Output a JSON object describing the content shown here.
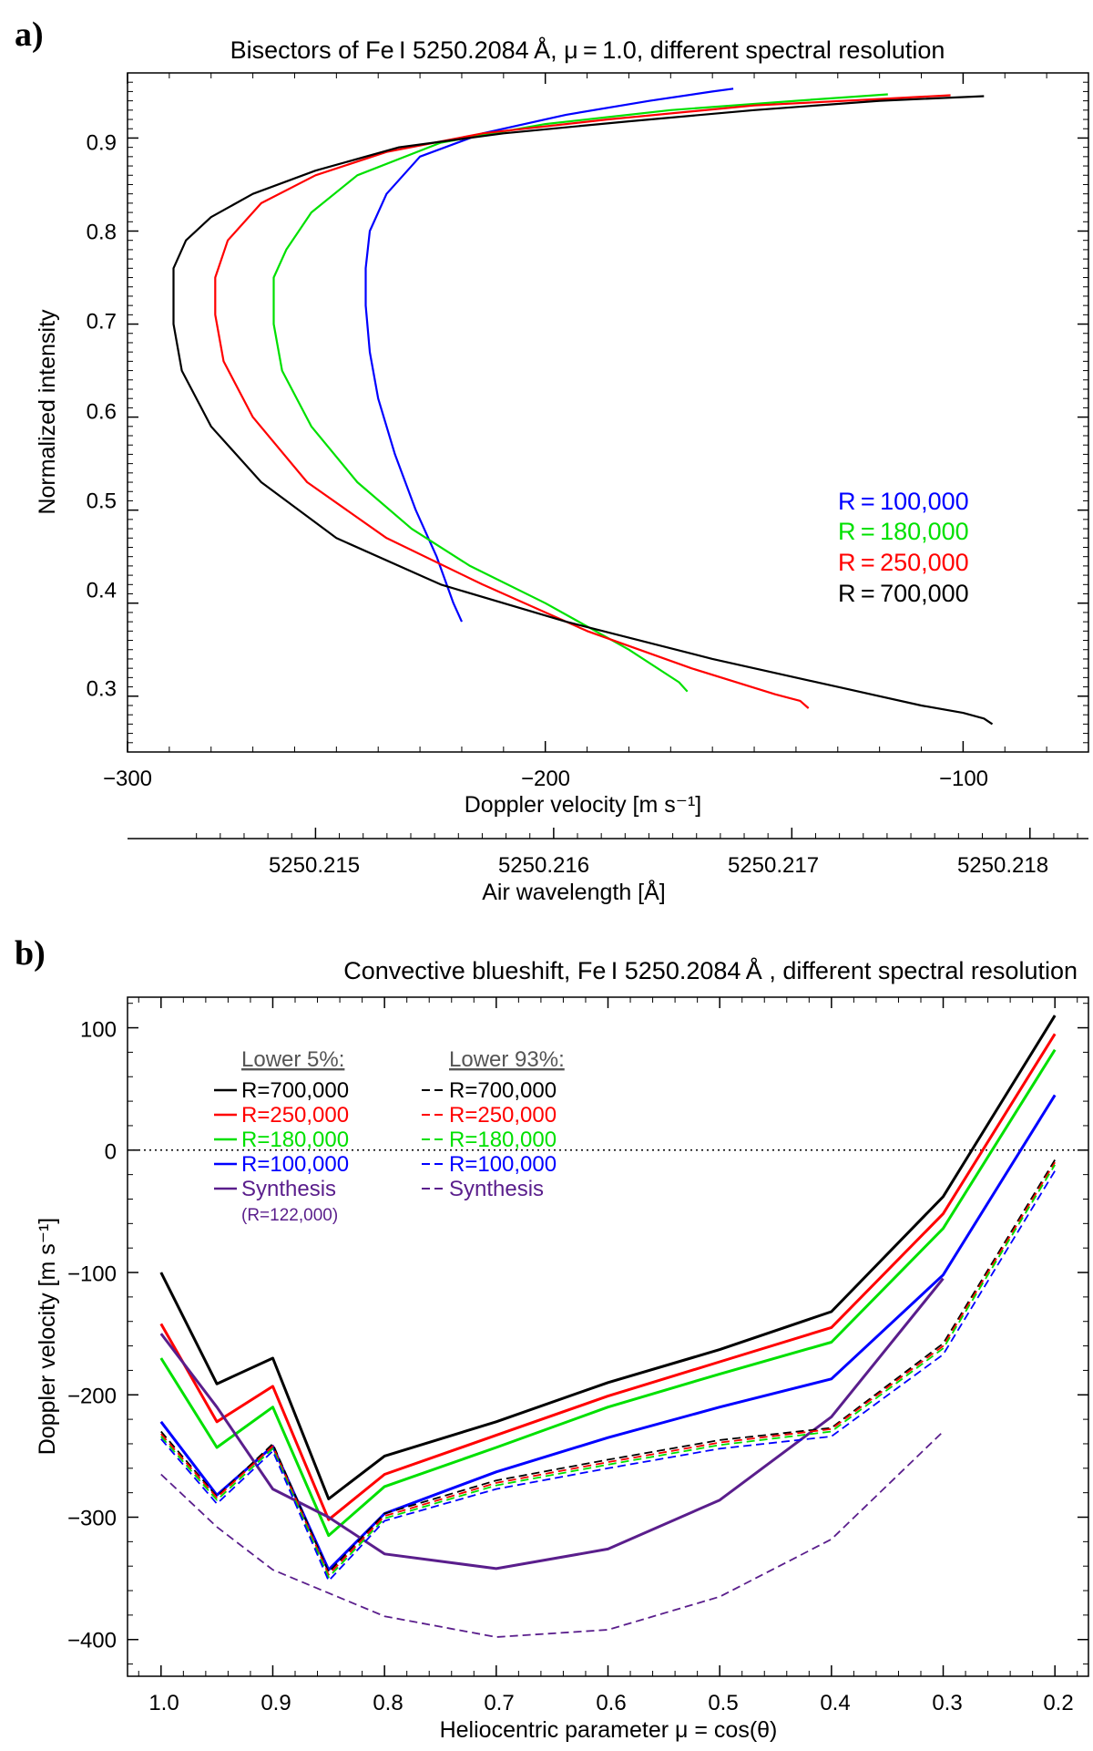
{
  "chart_data": [
    {
      "id": "a",
      "type": "line",
      "panel_label": "a)",
      "title": "Bisectors of Fe I 5250.2084 Å, μ = 1.0, different spectral resolution",
      "xlabel": "Doppler velocity [m s⁻¹]",
      "ylabel": "Normalized intensity",
      "xlim": [
        -300,
        -70
      ],
      "ylim": [
        0.24,
        0.97
      ],
      "x_ticks": [
        -300,
        -200,
        -100
      ],
      "x_tick_labels": [
        "−300",
        "−200",
        "−100"
      ],
      "y_ticks": [
        0.3,
        0.4,
        0.5,
        0.6,
        0.7,
        0.8,
        0.9
      ],
      "y_tick_labels": [
        "0.3",
        "0.4",
        "0.5",
        "0.6",
        "0.7",
        "0.8",
        "0.9"
      ],
      "secondary_x_axis": {
        "label": "Air wavelength [Å]",
        "ticks": [
          5250.215,
          5250.216,
          5250.217,
          5250.218
        ],
        "tick_labels": [
          "5250.215",
          "5250.216",
          "5250.217",
          "5250.218"
        ],
        "tick_velocity": [
          -255,
          -198,
          -141,
          -84
        ]
      },
      "legend": {
        "position": "lower-right",
        "entries": [
          {
            "label": "R = 100,000",
            "color": "#0000ff"
          },
          {
            "label": "R = 180,000",
            "color": "#00e000"
          },
          {
            "label": "R = 250,000",
            "color": "#ff0000"
          },
          {
            "label": "R = 700,000",
            "color": "#000000"
          }
        ]
      },
      "series": [
        {
          "name": "R = 100,000",
          "color": "#0000ff",
          "dash": "solid",
          "x": [
            -220,
            -222,
            -226,
            -231,
            -236,
            -240,
            -242,
            -243,
            -243,
            -242,
            -238,
            -230,
            -215,
            -195,
            -175,
            -160,
            -155
          ],
          "y": [
            0.38,
            0.4,
            0.45,
            0.5,
            0.56,
            0.62,
            0.67,
            0.72,
            0.76,
            0.8,
            0.84,
            0.88,
            0.905,
            0.925,
            0.94,
            0.95,
            0.953
          ]
        },
        {
          "name": "R = 180,000",
          "color": "#00e000",
          "dash": "solid",
          "x": [
            -166,
            -168,
            -180,
            -200,
            -218,
            -232,
            -245,
            -256,
            -263,
            -265,
            -265,
            -262,
            -256,
            -245,
            -225,
            -200,
            -170,
            -140,
            -118
          ],
          "y": [
            0.305,
            0.315,
            0.35,
            0.4,
            0.44,
            0.48,
            0.53,
            0.59,
            0.65,
            0.7,
            0.75,
            0.78,
            0.82,
            0.86,
            0.895,
            0.915,
            0.93,
            0.94,
            0.947
          ]
        },
        {
          "name": "R = 250,000",
          "color": "#ff0000",
          "dash": "solid",
          "x": [
            -137,
            -139,
            -145,
            -165,
            -190,
            -215,
            -238,
            -257,
            -270,
            -277,
            -279,
            -279,
            -276,
            -268,
            -255,
            -238,
            -215,
            -185,
            -150,
            -120,
            -103
          ],
          "y": [
            0.287,
            0.295,
            0.302,
            0.33,
            0.37,
            0.42,
            0.47,
            0.53,
            0.6,
            0.66,
            0.71,
            0.75,
            0.79,
            0.83,
            0.86,
            0.885,
            0.905,
            0.92,
            0.935,
            0.942,
            0.946
          ]
        },
        {
          "name": "R = 700,000",
          "color": "#000000",
          "dash": "solid",
          "x": [
            -93,
            -95,
            -100,
            -110,
            -130,
            -160,
            -195,
            -225,
            -250,
            -268,
            -280,
            -287,
            -289,
            -289,
            -286,
            -280,
            -270,
            -255,
            -235,
            -210,
            -180,
            -150,
            -120,
            -95
          ],
          "y": [
            0.27,
            0.276,
            0.282,
            0.29,
            0.31,
            0.34,
            0.38,
            0.42,
            0.47,
            0.53,
            0.59,
            0.65,
            0.7,
            0.76,
            0.79,
            0.815,
            0.84,
            0.865,
            0.89,
            0.905,
            0.918,
            0.93,
            0.94,
            0.945
          ]
        }
      ]
    },
    {
      "id": "b",
      "type": "line",
      "panel_label": "b)",
      "title": "Convective blueshift, Fe I 5250.2084 Å , different spectral resolution",
      "xlabel": "Heliocentric parameter μ = cos(θ)",
      "ylabel": "Doppler velocity [m s⁻¹]",
      "xlim": [
        1.03,
        0.17
      ],
      "ylim": [
        -430,
        125
      ],
      "x_ticks": [
        1.0,
        0.9,
        0.8,
        0.7,
        0.6,
        0.5,
        0.4,
        0.3,
        0.2
      ],
      "x_tick_labels": [
        "1.0",
        "0.9",
        "0.8",
        "0.7",
        "0.6",
        "0.5",
        "0.4",
        "0.3",
        "0.2"
      ],
      "y_ticks": [
        -400,
        -300,
        -200,
        -100,
        0,
        100
      ],
      "y_tick_labels": [
        "−400",
        "−300",
        "−200",
        "−100",
        "0",
        "100"
      ],
      "zero_line": true,
      "legend": {
        "position": "top-left",
        "columns": [
          {
            "heading": "Lower 5%:",
            "dash": "solid",
            "entries": [
              {
                "label": "R=700,000",
                "color": "#000000"
              },
              {
                "label": "R=250,000",
                "color": "#ff0000"
              },
              {
                "label": "R=180,000",
                "color": "#00e000"
              },
              {
                "label": "R=100,000",
                "color": "#0000ff"
              },
              {
                "label": "Synthesis",
                "color": "#5a1e8c",
                "note": "(R=122,000)"
              }
            ]
          },
          {
            "heading": "Lower 93%:",
            "dash": "dashed",
            "entries": [
              {
                "label": "R=700,000",
                "color": "#000000"
              },
              {
                "label": "R=250,000",
                "color": "#ff0000"
              },
              {
                "label": "R=180,000",
                "color": "#00e000"
              },
              {
                "label": "R=100,000",
                "color": "#0000ff"
              },
              {
                "label": "Synthesis",
                "color": "#5a1e8c"
              }
            ]
          }
        ]
      },
      "x": [
        1.0,
        0.95,
        0.9,
        0.85,
        0.8,
        0.7,
        0.6,
        0.5,
        0.4,
        0.3,
        0.2
      ],
      "series": [
        {
          "name": "Lower 5% R=700,000",
          "color": "#000000",
          "dash": "solid",
          "values": [
            -100,
            -191,
            -170,
            -285,
            -250,
            -222,
            -190,
            -163,
            -132,
            -38,
            110
          ]
        },
        {
          "name": "Lower 5% R=250,000",
          "color": "#ff0000",
          "dash": "solid",
          "values": [
            -142,
            -222,
            -193,
            -302,
            -265,
            -233,
            -201,
            -173,
            -145,
            -52,
            95
          ]
        },
        {
          "name": "Lower 5% R=180,000",
          "color": "#00e000",
          "dash": "solid",
          "values": [
            -170,
            -243,
            -210,
            -315,
            -275,
            -243,
            -210,
            -183,
            -157,
            -64,
            82
          ]
        },
        {
          "name": "Lower 5% R=100,000",
          "color": "#0000ff",
          "dash": "solid",
          "values": [
            -222,
            -282,
            -242,
            -343,
            -297,
            -263,
            -235,
            -210,
            -187,
            -102,
            45
          ]
        },
        {
          "name": "Lower 5% Synthesis (R=122,000)",
          "color": "#5a1e8c",
          "dash": "solid",
          "values": [
            -150,
            -210,
            -277,
            -300,
            -330,
            -342,
            -326,
            -286,
            -218,
            -105,
            null
          ]
        },
        {
          "name": "Lower 93% R=700,000",
          "color": "#000000",
          "dash": "dashed",
          "values": [
            -230,
            -283,
            -240,
            -345,
            -297,
            -270,
            -253,
            -237,
            -227,
            -158,
            -8
          ]
        },
        {
          "name": "Lower 93% R=250,000",
          "color": "#ff0000",
          "dash": "dashed",
          "values": [
            -232,
            -284,
            -242,
            -347,
            -299,
            -272,
            -255,
            -239,
            -228,
            -160,
            -10
          ]
        },
        {
          "name": "Lower 93% R=180,000",
          "color": "#00e000",
          "dash": "dashed",
          "values": [
            -234,
            -286,
            -244,
            -349,
            -301,
            -274,
            -257,
            -241,
            -230,
            -162,
            -12
          ]
        },
        {
          "name": "Lower 93% R=100,000",
          "color": "#0000ff",
          "dash": "dashed",
          "values": [
            -236,
            -289,
            -246,
            -352,
            -303,
            -277,
            -260,
            -244,
            -234,
            -167,
            -17
          ]
        },
        {
          "name": "Lower 93% Synthesis",
          "color": "#5a1e8c",
          "dash": "dashed",
          "values": [
            -265,
            -308,
            -343,
            -362,
            -381,
            -398,
            -392,
            -365,
            -318,
            -230,
            null
          ]
        }
      ]
    }
  ]
}
